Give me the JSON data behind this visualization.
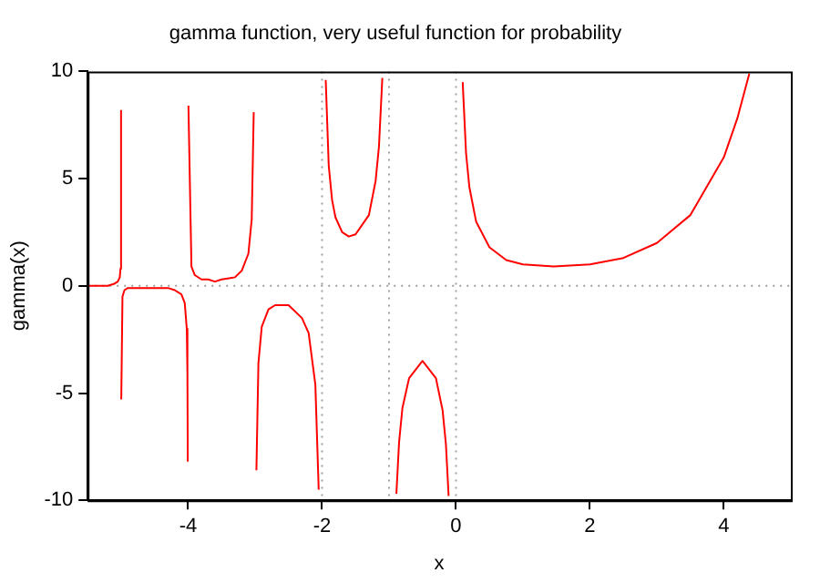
{
  "chart_data": {
    "type": "line",
    "title": "gamma function, very useful function for probability",
    "xlabel": "x",
    "ylabel": "gamma(x)",
    "x": [
      -5.5,
      -5.2,
      -5.1,
      -5.05,
      -5.02,
      -5.01,
      -5.001,
      -5.0,
      -4.998,
      -4.98,
      -4.95,
      -4.9,
      -4.8,
      -4.7,
      -4.5,
      -4.3,
      -4.2,
      -4.1,
      -4.05,
      -4.02,
      -4.01,
      -4.005,
      -4.0,
      -3.995,
      -3.95,
      -3.9,
      -3.8,
      -3.7,
      -3.6,
      -3.5,
      -3.3,
      -3.2,
      -3.1,
      -3.05,
      -3.02,
      -3.0,
      -2.98,
      -2.95,
      -2.9,
      -2.8,
      -2.7,
      -2.6,
      -2.5,
      -2.3,
      -2.2,
      -2.1,
      -2.05,
      -2.0,
      -1.945,
      -1.9,
      -1.85,
      -1.8,
      -1.7,
      -1.6,
      -1.5,
      -1.3,
      -1.2,
      -1.15,
      -1.1,
      -1.0,
      -0.89,
      -0.85,
      -0.8,
      -0.7,
      -0.5,
      -0.3,
      -0.2,
      -0.15,
      -0.11,
      0.0,
      0.1,
      0.15,
      0.2,
      0.3,
      0.5,
      0.75,
      1.0,
      1.46,
      2.0,
      2.5,
      3.0,
      3.5,
      4.0,
      4.2,
      4.38
    ],
    "series": [
      {
        "color": "#ff0000",
        "values": [
          0.0,
          0.0,
          0.1,
          0.2,
          0.4,
          0.8,
          8.2,
          null,
          -5.3,
          -0.5,
          -0.2,
          -0.1,
          -0.1,
          -0.1,
          -0.1,
          -0.1,
          -0.2,
          -0.4,
          -0.8,
          -2.0,
          -4.1,
          -8.2,
          null,
          8.4,
          0.9,
          0.5,
          0.3,
          0.3,
          0.2,
          0.3,
          0.4,
          0.7,
          1.5,
          3.1,
          8.1,
          null,
          -8.6,
          -3.6,
          -1.9,
          -1.1,
          -0.9,
          -0.9,
          -0.9,
          -1.5,
          -2.2,
          -4.6,
          -9.5,
          null,
          9.6,
          5.6,
          4.0,
          3.2,
          2.5,
          2.3,
          2.4,
          3.3,
          4.9,
          6.5,
          9.7,
          null,
          -9.7,
          -7.3,
          -5.7,
          -4.3,
          -3.5,
          -4.3,
          -5.8,
          -7.4,
          -9.8,
          null,
          9.5,
          6.2,
          4.6,
          3.0,
          1.8,
          1.2,
          1.0,
          0.9,
          1.0,
          1.3,
          2.0,
          3.3,
          6.0,
          7.8,
          9.9
        ]
      }
    ],
    "xlim": [
      -5.5,
      5
    ],
    "xticks": [
      -4,
      -2,
      0,
      2,
      4
    ],
    "ylim": [
      -10,
      10
    ],
    "yticks": [
      -10,
      -5,
      0,
      5,
      10
    ],
    "grid": false,
    "legend": false,
    "ref_lines": [
      {
        "axis": "x",
        "value": -2,
        "color": "#a0a0a0",
        "line_style": "dotted"
      },
      {
        "axis": "x",
        "value": -1,
        "color": "#a0a0a0",
        "line_style": "dotted"
      },
      {
        "axis": "x",
        "value": 0,
        "color": "#a0a0a0",
        "line_style": "dotted"
      },
      {
        "axis": "y",
        "value": 0,
        "color": "#a0a0a0",
        "line_style": "dotted"
      }
    ]
  }
}
